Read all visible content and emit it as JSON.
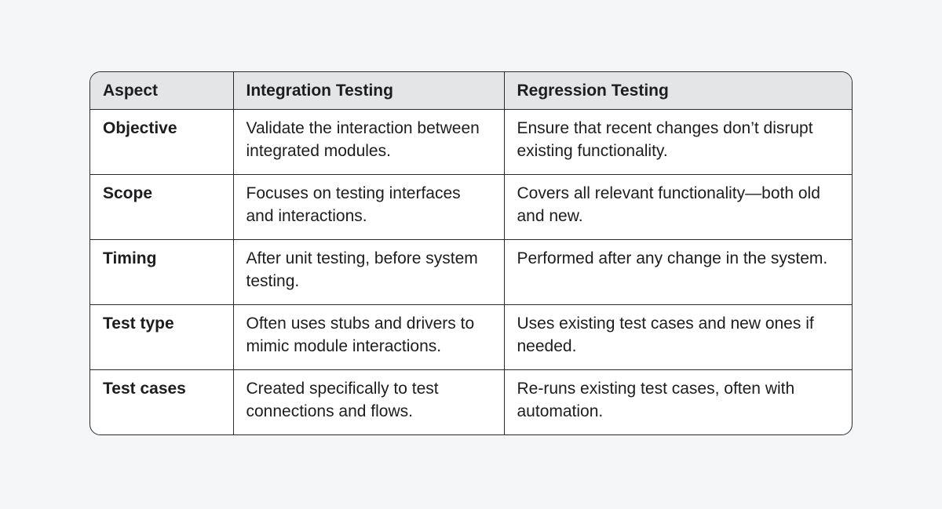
{
  "table": {
    "headers": [
      "Aspect",
      "Integration Testing",
      "Regression Testing"
    ],
    "rows": [
      [
        "Objective",
        "Validate the interaction between integrated modules.",
        "Ensure that recent changes don’t disrupt existing functionality."
      ],
      [
        "Scope",
        "Focuses on testing interfaces and interactions.",
        "Covers all relevant functionality—both old and new."
      ],
      [
        "Timing",
        "After unit testing, before system testing.",
        "Performed after any change in the system."
      ],
      [
        "Test type",
        "Often uses stubs and drivers to mimic module interactions.",
        "Uses existing test cases and new ones if needed."
      ],
      [
        "Test cases",
        "Created specifically to test connections and flows.",
        "Re-runs existing test cases, often with automation."
      ]
    ]
  }
}
